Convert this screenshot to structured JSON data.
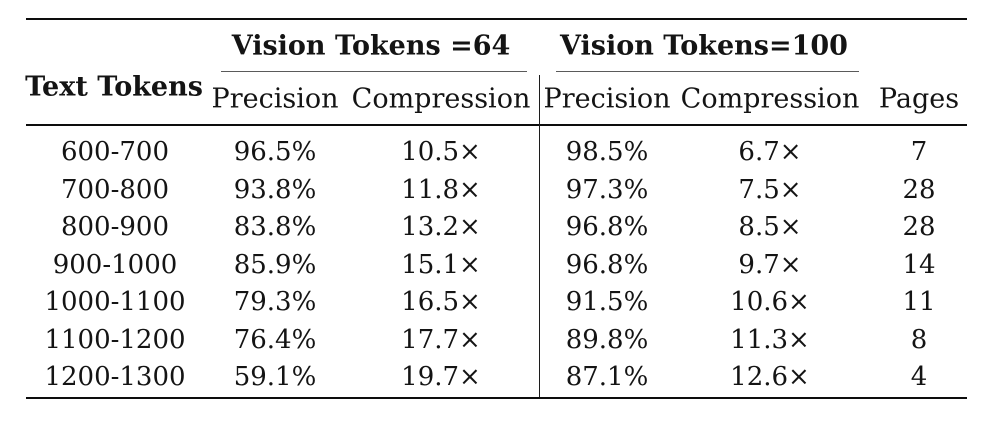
{
  "table": {
    "header": {
      "text_tokens": "Text Tokens",
      "group_64": "Vision Tokens =64",
      "group_100": "Vision Tokens=100",
      "sub_64": [
        "Precision",
        "Compression"
      ],
      "sub_100": [
        "Precision",
        "Compression"
      ],
      "pages": "Pages"
    },
    "rows": [
      [
        "600-700",
        "96.5%",
        "10.5×",
        "98.5%",
        "6.7×",
        "7"
      ],
      [
        "700-800",
        "93.8%",
        "11.8×",
        "97.3%",
        "7.5×",
        "28"
      ],
      [
        "800-900",
        "83.8%",
        "13.2×",
        "96.8%",
        "8.5×",
        "28"
      ],
      [
        "900-1000",
        "85.9%",
        "15.1×",
        "96.8%",
        "9.7×",
        "14"
      ],
      [
        "1000-1100",
        "79.3%",
        "16.5×",
        "91.5%",
        "10.6×",
        "11"
      ],
      [
        "1100-1200",
        "76.4%",
        "17.7×",
        "89.8%",
        "11.3×",
        "8"
      ],
      [
        "1200-1300",
        "59.1%",
        "19.7×",
        "87.1%",
        "12.6×",
        "4"
      ]
    ]
  },
  "colors": {
    "background": "#ffffff",
    "text": "#141414",
    "heavy_rule": "#0d0d0d",
    "thin_rule": "#5a5a5a"
  }
}
